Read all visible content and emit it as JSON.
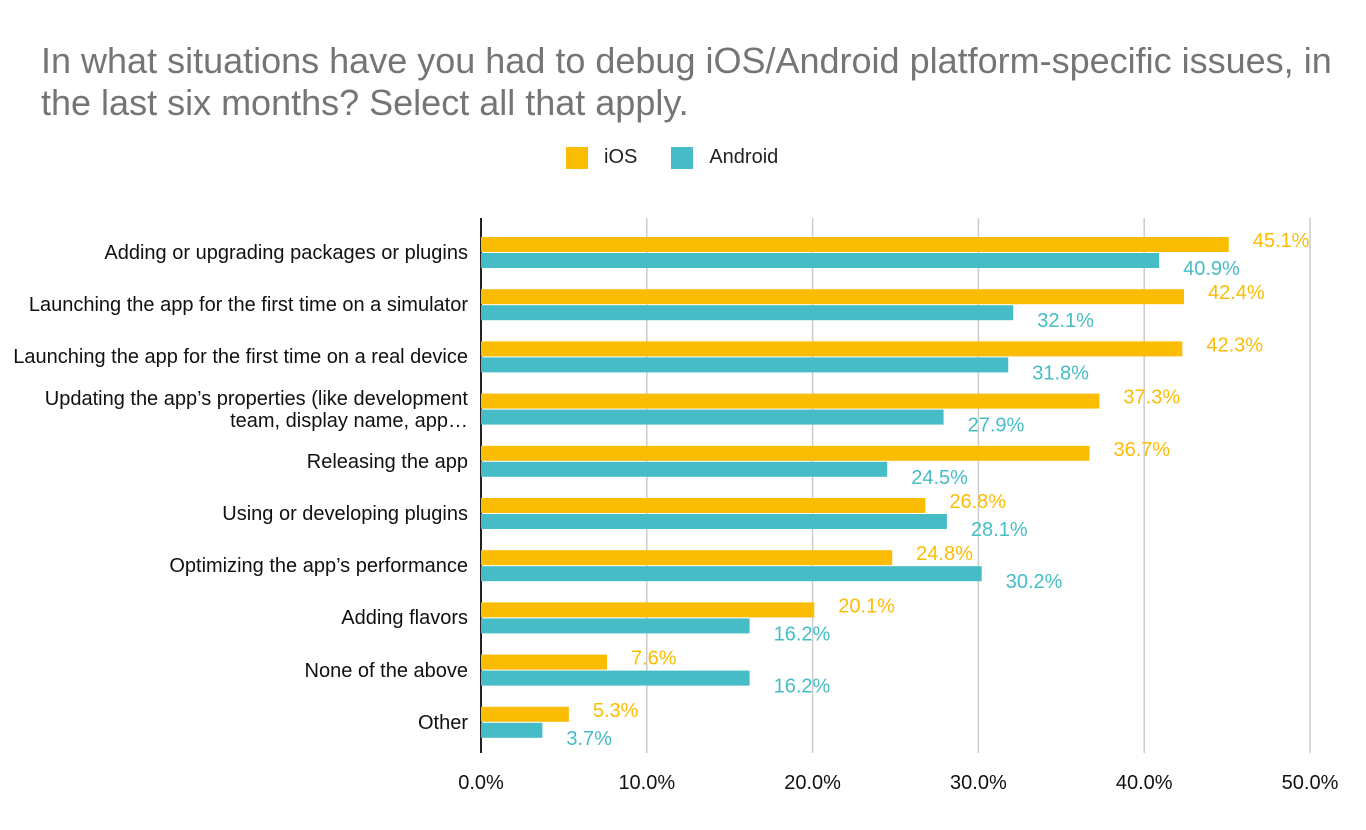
{
  "chart_data": {
    "type": "bar",
    "orientation": "horizontal",
    "title": "In what situations have you had to debug iOS/Android platform-specific issues, in the last six months? Select all that apply.",
    "categories": [
      "Adding or upgrading packages or plugins",
      "Launching the app for the first time on a simulator",
      "Launching the app for the first time on a real device",
      "Updating the app’s properties (like development team, display name, app…",
      "Releasing the app",
      "Using or developing plugins",
      "Optimizing the app’s performance",
      "Adding flavors",
      "None of the above",
      "Other"
    ],
    "series": [
      {
        "name": "iOS",
        "color": "#fbbc04",
        "values": [
          45.1,
          42.4,
          42.3,
          37.3,
          36.7,
          26.8,
          24.8,
          20.1,
          7.6,
          5.3
        ],
        "labels": [
          "45.1%",
          "42.4%",
          "42.3%",
          "37.3%",
          "36.7%",
          "26.8%",
          "24.8%",
          "20.1%",
          "7.6%",
          "5.3%"
        ]
      },
      {
        "name": "Android",
        "color": "#46bdc6",
        "values": [
          40.9,
          32.1,
          31.8,
          27.9,
          24.5,
          28.1,
          30.2,
          16.2,
          16.2,
          3.7
        ],
        "labels": [
          "40.9%",
          "32.1%",
          "31.8%",
          "27.9%",
          "24.5%",
          "28.1%",
          "30.2%",
          "16.2%",
          "16.2%",
          "3.7%"
        ]
      }
    ],
    "xlim": [
      0,
      50
    ],
    "xticks": [
      "0.0%",
      "10.0%",
      "20.0%",
      "30.0%",
      "40.0%",
      "50.0%"
    ],
    "grid": true,
    "legend_position": "top"
  }
}
